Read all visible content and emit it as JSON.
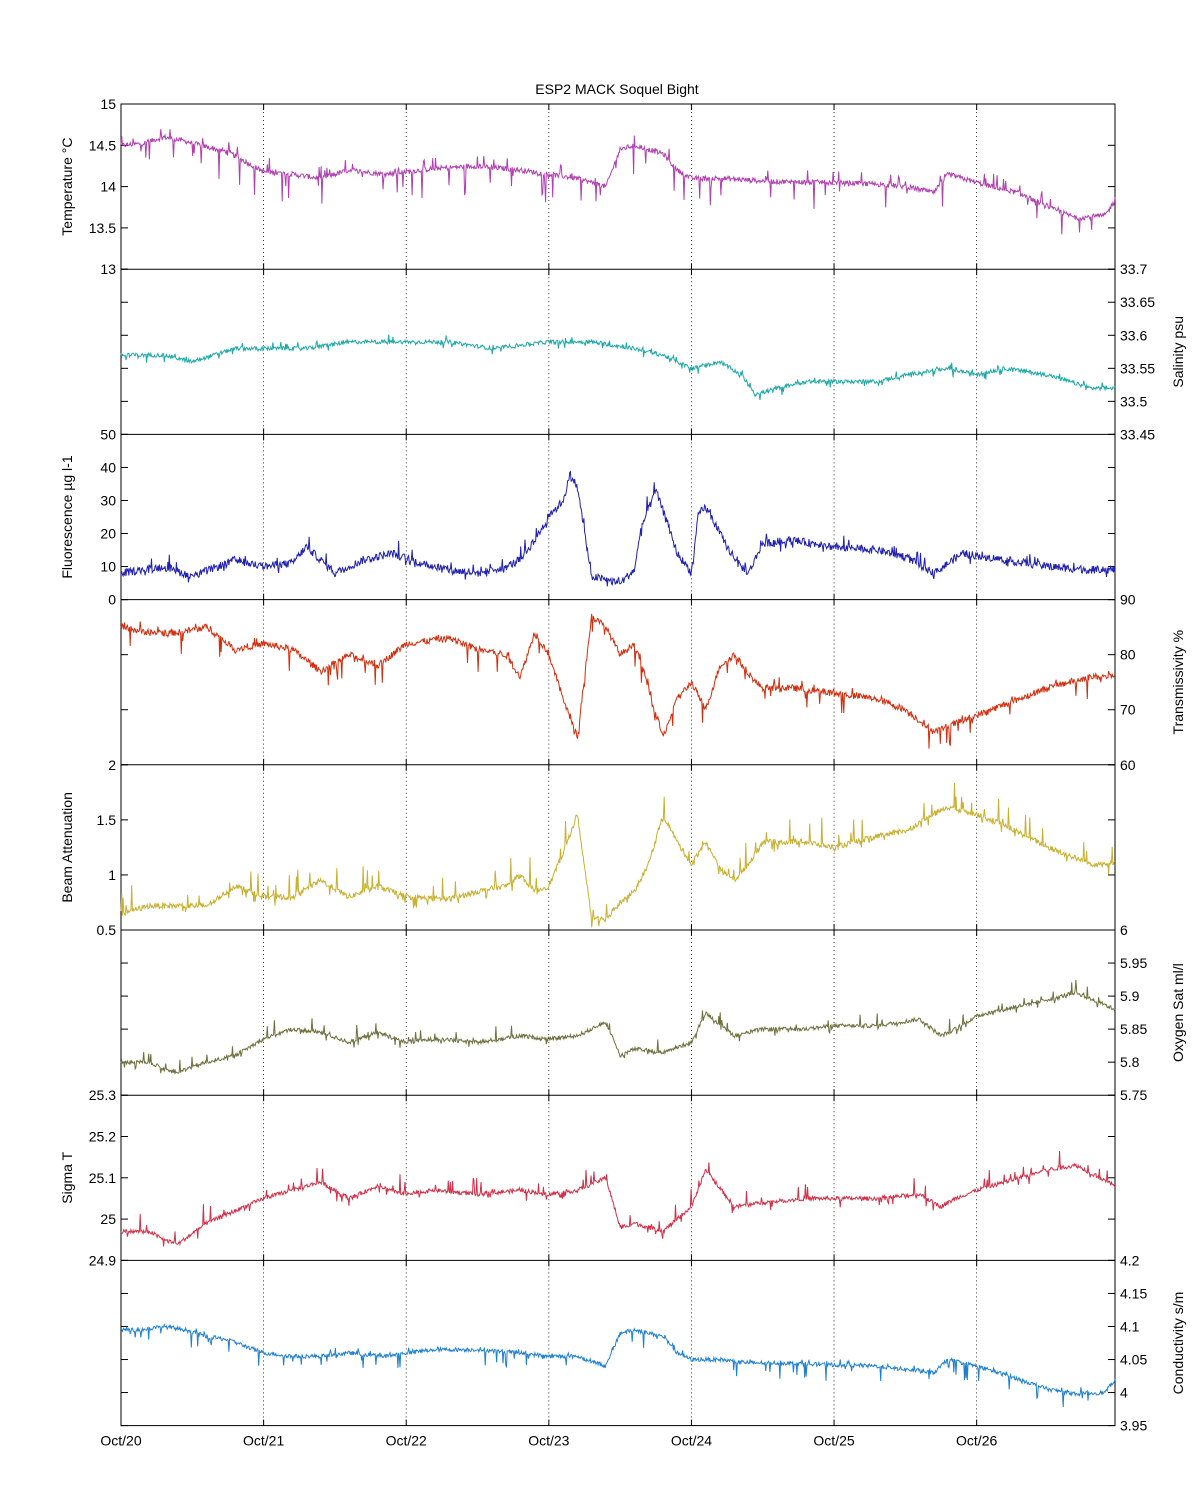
{
  "figure": {
    "title": "ESP2 MACK  Soquel Bight"
  },
  "chart_data": {
    "type": "line",
    "title": "ESP2 MACK  Soquel Bight",
    "x_ticks": [
      "Oct/20",
      "Oct/21",
      "Oct/22",
      "Oct/23",
      "Oct/24",
      "Oct/25",
      "Oct/26"
    ],
    "x_range_days": [
      0,
      6.97
    ],
    "grid": "vertical dotted lines at each day",
    "panels": [
      {
        "name": "temperature",
        "label": "Temperature °C",
        "axis": "left",
        "color": "#b040b0",
        "ylim": [
          13,
          15
        ],
        "ticks": [
          "13",
          "13.5",
          "14",
          "14.5",
          "15"
        ],
        "tick_values": [
          13,
          13.5,
          14,
          14.5,
          15
        ],
        "noise": 0.03,
        "spike_down": 0.35,
        "spike_up": 0.15,
        "x": [
          0,
          0.15,
          0.3,
          0.45,
          0.6,
          0.75,
          1.0,
          1.2,
          1.4,
          1.6,
          1.85,
          2.0,
          2.2,
          2.5,
          2.8,
          3.0,
          3.2,
          3.4,
          3.5,
          3.6,
          3.8,
          3.9,
          4.0,
          4.2,
          4.4,
          4.6,
          5.0,
          5.3,
          5.5,
          5.7,
          5.8,
          6.0,
          6.3,
          6.5,
          6.7,
          6.9,
          6.97
        ],
        "y": [
          14.5,
          14.52,
          14.6,
          14.55,
          14.48,
          14.42,
          14.18,
          14.15,
          14.1,
          14.2,
          14.15,
          14.18,
          14.22,
          14.25,
          14.2,
          14.15,
          14.1,
          14.0,
          14.45,
          14.5,
          14.4,
          14.2,
          14.1,
          14.1,
          14.08,
          14.06,
          14.05,
          14.03,
          14.0,
          13.93,
          14.15,
          14.05,
          13.92,
          13.75,
          13.62,
          13.65,
          13.83
        ]
      },
      {
        "name": "salinity",
        "label": "Salinity psu",
        "axis": "right",
        "color": "#20a8a8",
        "ylim": [
          33.45,
          33.7
        ],
        "ticks": [
          "33.45",
          "33.5",
          "33.55",
          "33.6",
          "33.65",
          "33.7"
        ],
        "tick_values": [
          33.45,
          33.5,
          33.55,
          33.6,
          33.65,
          33.7
        ],
        "noise": 0.003,
        "spike_down": 0.01,
        "spike_up": 0.01,
        "x": [
          0,
          0.3,
          0.5,
          0.8,
          1.0,
          1.3,
          1.6,
          2.0,
          2.3,
          2.6,
          3.0,
          3.3,
          3.6,
          3.8,
          4.0,
          4.2,
          4.35,
          4.45,
          4.6,
          4.8,
          5.0,
          5.3,
          5.5,
          5.8,
          6.0,
          6.2,
          6.5,
          6.8,
          6.97
        ],
        "y": [
          33.57,
          33.57,
          33.56,
          33.58,
          33.58,
          33.58,
          33.59,
          33.59,
          33.59,
          33.58,
          33.59,
          33.59,
          33.58,
          33.57,
          33.55,
          33.56,
          33.54,
          33.51,
          33.52,
          33.53,
          33.53,
          33.53,
          33.54,
          33.55,
          33.54,
          33.55,
          33.54,
          33.52,
          33.52
        ]
      },
      {
        "name": "fluorescence",
        "label": "Fluorescence µg l-1",
        "axis": "left",
        "color": "#2020b0",
        "ylim": [
          0,
          50
        ],
        "ticks": [
          "0",
          "10",
          "20",
          "30",
          "40",
          "50"
        ],
        "tick_values": [
          0,
          10,
          20,
          30,
          40,
          50
        ],
        "noise": 1.2,
        "spike_down": 2,
        "spike_up": 4,
        "x": [
          0,
          0.3,
          0.5,
          0.8,
          1.0,
          1.2,
          1.3,
          1.5,
          1.7,
          1.9,
          2.1,
          2.3,
          2.5,
          2.7,
          2.8,
          2.9,
          3.0,
          3.1,
          3.15,
          3.2,
          3.3,
          3.5,
          3.6,
          3.65,
          3.75,
          3.8,
          3.9,
          4.0,
          4.05,
          4.1,
          4.2,
          4.3,
          4.4,
          4.5,
          4.7,
          5.0,
          5.3,
          5.5,
          5.7,
          5.9,
          6.2,
          6.5,
          6.8,
          6.97
        ],
        "y": [
          8,
          10,
          7,
          12,
          10,
          11,
          16,
          8,
          12,
          14,
          11,
          9,
          8,
          10,
          12,
          18,
          25,
          30,
          38,
          34,
          7,
          5,
          9,
          22,
          33,
          27,
          14,
          8,
          26,
          28,
          20,
          12,
          8,
          17,
          18,
          16,
          15,
          13,
          8,
          14,
          12,
          10,
          9,
          9
        ]
      },
      {
        "name": "transmissivity",
        "label": "Transmissivity %",
        "axis": "right",
        "color": "#d03010",
        "ylim": [
          60,
          90
        ],
        "ticks": [
          "60",
          "70",
          "80",
          "90"
        ],
        "tick_values": [
          60,
          70,
          80,
          90
        ],
        "noise": 0.6,
        "spike_down": 4,
        "spike_up": 1.5,
        "x": [
          0,
          0.2,
          0.4,
          0.6,
          0.8,
          1.0,
          1.2,
          1.4,
          1.6,
          1.8,
          2.0,
          2.3,
          2.5,
          2.7,
          2.8,
          2.9,
          3.0,
          3.1,
          3.2,
          3.3,
          3.4,
          3.5,
          3.6,
          3.7,
          3.8,
          3.9,
          4.0,
          4.1,
          4.2,
          4.3,
          4.45,
          4.5,
          4.7,
          5.0,
          5.3,
          5.5,
          5.7,
          5.8,
          6.0,
          6.2,
          6.5,
          6.8,
          6.97
        ],
        "y": [
          85,
          84,
          84,
          85,
          81,
          82,
          81,
          77,
          80,
          78,
          82,
          83,
          81,
          80,
          76,
          84,
          80,
          72,
          65,
          87,
          85,
          80,
          82,
          74,
          65,
          72,
          75,
          70,
          78,
          80,
          75,
          74,
          74,
          73,
          72,
          70,
          66,
          67,
          69,
          71,
          74,
          76,
          76
        ]
      },
      {
        "name": "beam_attenuation",
        "label": "Beam Attenuation",
        "axis": "left",
        "color": "#c8b030",
        "ylim": [
          0.5,
          2
        ],
        "ticks": [
          "0.5",
          "1",
          "1.5",
          "2"
        ],
        "tick_values": [
          0.5,
          1,
          1.5,
          2
        ],
        "noise": 0.025,
        "spike_down": 0.08,
        "spike_up": 0.25,
        "x": [
          0,
          0.2,
          0.4,
          0.6,
          0.8,
          1.0,
          1.2,
          1.4,
          1.6,
          1.8,
          2.0,
          2.3,
          2.5,
          2.7,
          2.8,
          2.9,
          3.0,
          3.1,
          3.2,
          3.3,
          3.4,
          3.5,
          3.6,
          3.7,
          3.8,
          3.9,
          4.0,
          4.1,
          4.2,
          4.3,
          4.4,
          4.5,
          4.8,
          5.0,
          5.3,
          5.5,
          5.7,
          5.8,
          6.0,
          6.2,
          6.5,
          6.8,
          6.97
        ],
        "y": [
          0.65,
          0.72,
          0.72,
          0.72,
          0.9,
          0.8,
          0.8,
          0.95,
          0.8,
          0.9,
          0.8,
          0.78,
          0.85,
          0.9,
          1.0,
          0.85,
          0.9,
          1.2,
          1.55,
          0.6,
          0.6,
          0.75,
          0.85,
          1.1,
          1.55,
          1.3,
          1.1,
          1.3,
          1.05,
          0.95,
          1.1,
          1.3,
          1.3,
          1.25,
          1.35,
          1.4,
          1.55,
          1.62,
          1.55,
          1.45,
          1.25,
          1.1,
          1.1
        ]
      },
      {
        "name": "oxygen",
        "label": "Oxygen Sat ml/l",
        "axis": "right",
        "color": "#707040",
        "ylim": [
          5.75,
          6
        ],
        "ticks": [
          "5.75",
          "5.8",
          "5.85",
          "5.9",
          "5.95",
          "6"
        ],
        "tick_values": [
          5.75,
          5.8,
          5.85,
          5.9,
          5.95,
          6
        ],
        "noise": 0.003,
        "spike_down": 0.01,
        "spike_up": 0.02,
        "x": [
          0,
          0.2,
          0.3,
          0.4,
          0.6,
          0.8,
          1.0,
          1.2,
          1.4,
          1.6,
          1.8,
          2.0,
          2.2,
          2.5,
          2.8,
          3.0,
          3.2,
          3.4,
          3.5,
          3.6,
          3.8,
          4.0,
          4.1,
          4.3,
          4.5,
          4.8,
          5.0,
          5.3,
          5.6,
          5.75,
          5.85,
          6.0,
          6.2,
          6.5,
          6.7,
          6.97
        ],
        "y": [
          5.8,
          5.8,
          5.79,
          5.785,
          5.8,
          5.81,
          5.835,
          5.85,
          5.845,
          5.83,
          5.845,
          5.83,
          5.835,
          5.83,
          5.84,
          5.835,
          5.84,
          5.86,
          5.81,
          5.82,
          5.815,
          5.83,
          5.875,
          5.84,
          5.85,
          5.85,
          5.855,
          5.855,
          5.865,
          5.84,
          5.85,
          5.87,
          5.88,
          5.895,
          5.905,
          5.88
        ]
      },
      {
        "name": "sigma_t",
        "label": "Sigma T",
        "axis": "left",
        "color": "#d03048",
        "ylim": [
          24.9,
          25.3
        ],
        "ticks": [
          "24.9",
          "25",
          "25.1",
          "25.2",
          "25.3"
        ],
        "tick_values": [
          24.9,
          25.0,
          25.1,
          25.2,
          25.3
        ],
        "noise": 0.005,
        "spike_down": 0.02,
        "spike_up": 0.05,
        "x": [
          0,
          0.2,
          0.3,
          0.4,
          0.6,
          0.8,
          1.0,
          1.2,
          1.4,
          1.6,
          1.8,
          2.0,
          2.2,
          2.5,
          2.8,
          3.0,
          3.2,
          3.4,
          3.5,
          3.6,
          3.8,
          4.0,
          4.1,
          4.3,
          4.5,
          4.8,
          5.0,
          5.3,
          5.6,
          5.75,
          5.85,
          6.0,
          6.2,
          6.5,
          6.7,
          6.97
        ],
        "y": [
          24.97,
          24.97,
          24.95,
          24.94,
          24.99,
          25.02,
          25.05,
          25.07,
          25.09,
          25.05,
          25.08,
          25.06,
          25.07,
          25.06,
          25.07,
          25.06,
          25.07,
          25.1,
          24.98,
          24.99,
          24.97,
          25.03,
          25.12,
          25.03,
          25.04,
          25.05,
          25.05,
          25.05,
          25.06,
          25.03,
          25.05,
          25.07,
          25.09,
          25.12,
          25.13,
          25.08
        ]
      },
      {
        "name": "conductivity",
        "label": "Conductivity s/m",
        "axis": "right",
        "color": "#2080d0",
        "ylim": [
          3.95,
          4.2
        ],
        "ticks": [
          "3.95",
          "4",
          "4.05",
          "4.1",
          "4.15",
          "4.2"
        ],
        "tick_values": [
          3.95,
          4.0,
          4.05,
          4.1,
          4.15,
          4.2
        ],
        "noise": 0.003,
        "spike_down": 0.025,
        "spike_up": 0.008,
        "x": [
          0,
          0.15,
          0.3,
          0.45,
          0.6,
          0.75,
          1.0,
          1.2,
          1.4,
          1.6,
          1.85,
          2.0,
          2.2,
          2.5,
          2.8,
          3.0,
          3.2,
          3.4,
          3.5,
          3.6,
          3.8,
          3.9,
          4.0,
          4.2,
          4.4,
          4.6,
          5.0,
          5.3,
          5.5,
          5.7,
          5.8,
          6.0,
          6.3,
          6.5,
          6.7,
          6.9,
          6.97
        ],
        "y": [
          4.095,
          4.095,
          4.1,
          4.095,
          4.085,
          4.08,
          4.06,
          4.055,
          4.055,
          4.06,
          4.055,
          4.06,
          4.065,
          4.065,
          4.06,
          4.055,
          4.055,
          4.04,
          4.09,
          4.095,
          4.085,
          4.06,
          4.05,
          4.05,
          4.045,
          4.045,
          4.042,
          4.04,
          4.035,
          4.03,
          4.05,
          4.04,
          4.02,
          4.005,
          3.998,
          4.0,
          4.02
        ]
      }
    ]
  }
}
